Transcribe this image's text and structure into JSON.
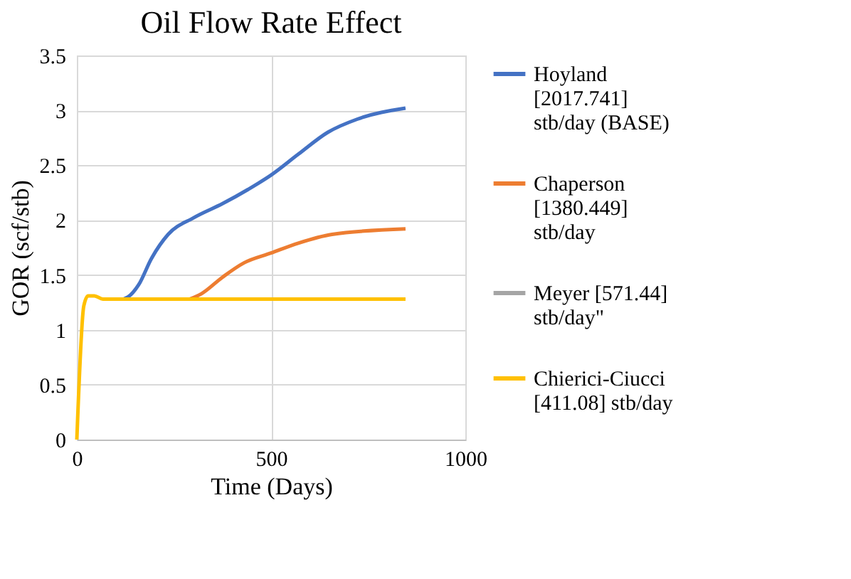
{
  "chart_data": {
    "type": "line",
    "title": "Oil Flow Rate Effect",
    "xlabel": "Time (Days)",
    "ylabel": "GOR (scf/stb)",
    "xlim": [
      0,
      1000
    ],
    "xticks": [
      0,
      500,
      1000
    ],
    "ylim": [
      0,
      3.5
    ],
    "yticks": [
      0,
      0.5,
      1,
      1.5,
      2,
      2.5,
      3,
      3.5
    ],
    "grid": true,
    "legend": "right",
    "marker": "none",
    "line_style": "solid",
    "series": [
      {
        "name": "Hoyland [2017.741] stb/day (BASE)",
        "color": "#4472c4",
        "x": [
          120,
          132,
          159,
          192,
          235,
          300,
          375,
          441,
          500,
          570,
          646,
          722,
          846
        ],
        "values": [
          1.28,
          1.3,
          1.41,
          1.65,
          1.87,
          2.02,
          2.15,
          2.28,
          2.41,
          2.6,
          2.8,
          2.92,
          3.02
        ]
      },
      {
        "name": "Chaperson [1380.449] stb/day",
        "color": "#ed7d31",
        "x": [
          290,
          321,
          375,
          430,
          500,
          570,
          657,
          846
        ],
        "values": [
          1.28,
          1.33,
          1.48,
          1.61,
          1.7,
          1.79,
          1.87,
          1.92
        ]
      },
      {
        "name": "Meyer  [571.44] stb/day\"",
        "color": "#a5a5a5"
      },
      {
        "name": "Chierici-Ciucci [411.08] stb/day",
        "color": "#ffc000",
        "x": [
          0,
          18,
          29,
          45,
          67,
          846
        ],
        "values": [
          0,
          1.22,
          1.31,
          1.31,
          1.28,
          1.28
        ]
      }
    ]
  }
}
